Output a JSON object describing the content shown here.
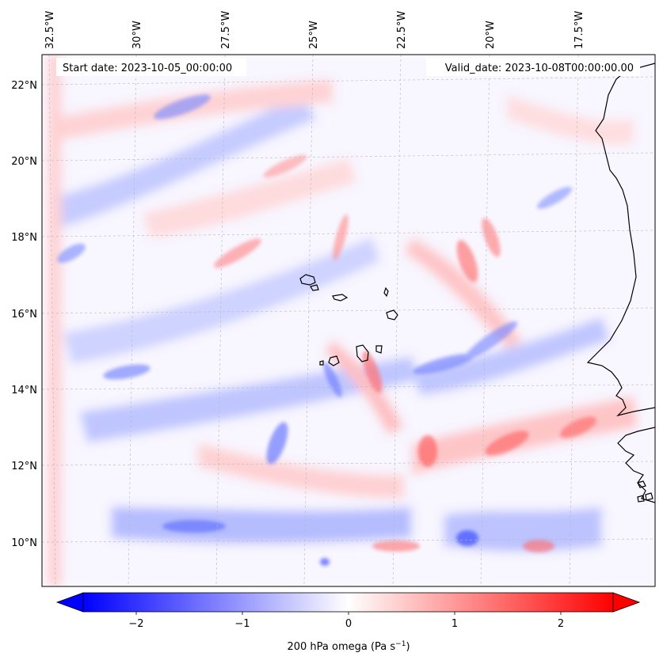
{
  "map": {
    "start_date_label": "Start date: 2023-10-05_00:00:00",
    "valid_date_label": "Valid_date: 2023-10-08T00:00:00.00",
    "lon_labels": [
      "32.5°W",
      "30°W",
      "27.5°W",
      "25°W",
      "22.5°W",
      "20°W",
      "17.5°W"
    ],
    "lat_labels": [
      "22°N",
      "20°N",
      "18°N",
      "16°N",
      "14°N",
      "12°N",
      "10°N"
    ],
    "gridlines": true,
    "field_colormap": "bwr",
    "coastline_color": "#000000"
  },
  "colorbar": {
    "label_text": "200 hPa omega (Pa s",
    "label_exponent": "−1",
    "label_close": ")",
    "ticks": [
      "−2",
      "−1",
      "0",
      "1",
      "2"
    ],
    "min_color": "#0000ff",
    "mid_color": "#ffffff",
    "max_color": "#ff0000",
    "extend": "both"
  }
}
